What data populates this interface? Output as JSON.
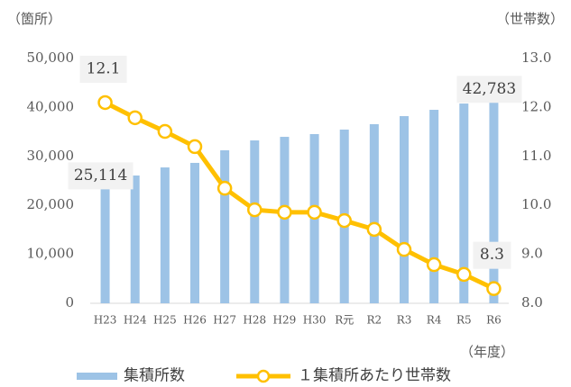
{
  "chart_data": {
    "type": "bar-line",
    "y_label": "（箇所）",
    "y2_label": "（世帯数）",
    "x_label": "（年度）",
    "categories": [
      "H23",
      "H24",
      "H25",
      "H26",
      "H27",
      "H28",
      "H29",
      "H30",
      "R元",
      "R2",
      "R3",
      "R4",
      "R5",
      "R6"
    ],
    "series": [
      {
        "name": "集積所数",
        "type": "bar",
        "color": "#9dc3e6",
        "values": [
          25114,
          26100,
          27750,
          28680,
          31250,
          33270,
          34000,
          34560,
          35480,
          36580,
          38230,
          39520,
          40800,
          42783
        ],
        "value_labels": [
          "25,114",
          null,
          null,
          null,
          null,
          null,
          null,
          null,
          null,
          null,
          null,
          null,
          null,
          "42,783"
        ]
      },
      {
        "name": "１集積所あたり世帯数",
        "type": "line",
        "axis": "y2",
        "color": "#ffc000",
        "values": [
          12.1,
          11.79,
          11.51,
          11.2,
          10.35,
          9.91,
          9.86,
          9.86,
          9.69,
          9.51,
          9.1,
          8.79,
          8.59,
          8.3
        ],
        "labeled": [
          0,
          13
        ]
      }
    ],
    "ylim": [
      0,
      50000
    ],
    "yticks": [
      0,
      {
        "value": 10000,
        "label": "10,000"
      },
      {
        "value": 20000,
        "label": "20,000"
      },
      {
        "value": 30000,
        "label": "30,000"
      },
      {
        "value": 40000,
        "label": "40,000"
      },
      {
        "value": 50000,
        "label": "50,000"
      }
    ],
    "y2lim": [
      8,
      13
    ],
    "y2ticks": [
      {
        "value": 8,
        "label": "8.0"
      },
      {
        "value": 9,
        "label": "9.0"
      },
      {
        "value": 10,
        "label": "10.0"
      },
      {
        "value": 11,
        "label": "11.0"
      },
      {
        "value": 12,
        "label": "12.0"
      },
      {
        "value": 13,
        "label": "13.0"
      }
    ],
    "grid": false,
    "legend": "bottom"
  }
}
